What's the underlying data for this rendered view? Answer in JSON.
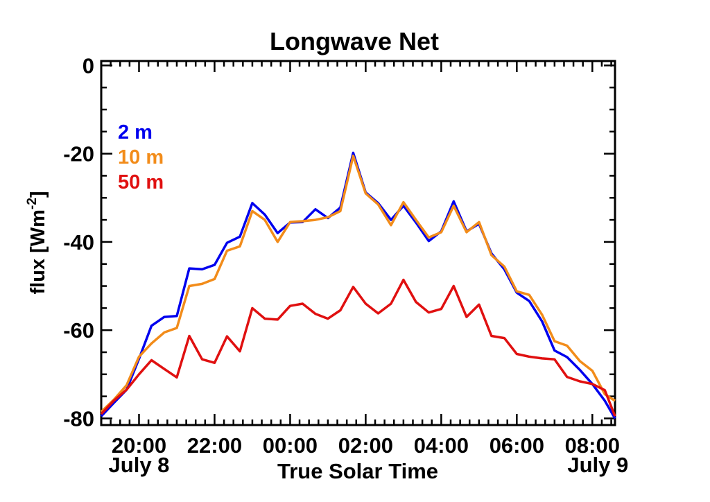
{
  "chart_data": {
    "type": "line",
    "title": "Longwave Net",
    "xlabel": "True Solar Time",
    "ylabel": "flux [Wm",
    "ylabel_sup": "-2",
    "ylabel_close": "]",
    "x_unit": "hours",
    "xlim": [
      19.0,
      32.6
    ],
    "ylim": [
      -81.5,
      1.0
    ],
    "xticks": [
      {
        "x": 20,
        "label": "20:00",
        "sublabel": "July 8"
      },
      {
        "x": 22,
        "label": "22:00"
      },
      {
        "x": 24,
        "label": "00:00"
      },
      {
        "x": 26,
        "label": "02:00"
      },
      {
        "x": 28,
        "label": "04:00"
      },
      {
        "x": 30,
        "label": "06:00"
      },
      {
        "x": 32,
        "label": "08:00",
        "sublabel": "July 9"
      }
    ],
    "yticks": [
      {
        "y": 0,
        "label": "0"
      },
      {
        "y": -20,
        "label": "-20"
      },
      {
        "y": -40,
        "label": "-40"
      },
      {
        "y": -60,
        "label": "-60"
      },
      {
        "y": -80,
        "label": "-80"
      }
    ],
    "grid": false,
    "legend_position": "top-left",
    "x": [
      19.0,
      19.33,
      19.67,
      20.0,
      20.33,
      20.67,
      21.0,
      21.33,
      21.67,
      22.0,
      22.33,
      22.67,
      23.0,
      23.33,
      23.67,
      24.0,
      24.33,
      24.67,
      25.0,
      25.33,
      25.67,
      26.0,
      26.33,
      26.67,
      27.0,
      27.33,
      27.67,
      28.0,
      28.33,
      28.67,
      29.0,
      29.33,
      29.67,
      30.0,
      30.33,
      30.67,
      31.0,
      31.33,
      31.67,
      32.0,
      32.33,
      32.6
    ],
    "series": [
      {
        "name": "2 m",
        "color": "#0000ee",
        "values": [
          -79.5,
          -76.5,
          -73.5,
          -66.5,
          -59.0,
          -57.0,
          -56.8,
          -46.0,
          -46.2,
          -45.2,
          -40.2,
          -38.8,
          -31.2,
          -33.8,
          -38.0,
          -35.6,
          -35.5,
          -32.6,
          -34.6,
          -32.2,
          -19.8,
          -28.8,
          -31.2,
          -35.0,
          -31.8,
          -35.6,
          -39.8,
          -37.6,
          -30.8,
          -37.6,
          -35.9,
          -42.6,
          -46.2,
          -51.5,
          -53.4,
          -58.0,
          -64.6,
          -66.1,
          -69.0,
          -72.2,
          -76.0,
          -80.0
        ]
      },
      {
        "name": "10 m",
        "color": "#f28c1a",
        "values": [
          -78.5,
          -75.8,
          -72.5,
          -66.0,
          -63.0,
          -60.5,
          -59.5,
          -50.0,
          -49.5,
          -48.4,
          -42.0,
          -41.0,
          -33.0,
          -35.0,
          -40.0,
          -35.5,
          -35.3,
          -35.0,
          -34.4,
          -33.0,
          -20.5,
          -29.0,
          -31.5,
          -36.2,
          -31.0,
          -35.0,
          -39.0,
          -37.8,
          -31.8,
          -37.8,
          -35.5,
          -43.0,
          -45.6,
          -51.2,
          -52.0,
          -56.5,
          -62.5,
          -63.5,
          -67.0,
          -69.2,
          -74.5,
          -76.0
        ]
      },
      {
        "name": "50 m",
        "color": "#e01010",
        "values": [
          -79.0,
          -76.0,
          -73.5,
          -70.0,
          -66.8,
          -68.8,
          -70.7,
          -61.3,
          -66.6,
          -67.4,
          -61.4,
          -64.8,
          -55.0,
          -57.4,
          -57.6,
          -54.5,
          -54.0,
          -56.3,
          -57.4,
          -55.5,
          -50.2,
          -54.0,
          -56.2,
          -54.0,
          -48.6,
          -53.6,
          -56.0,
          -55.2,
          -50.0,
          -57.0,
          -54.2,
          -61.3,
          -61.8,
          -65.4,
          -66.0,
          -66.4,
          -66.6,
          -70.6,
          -71.6,
          -72.2,
          -73.6,
          -79.5
        ]
      }
    ]
  }
}
